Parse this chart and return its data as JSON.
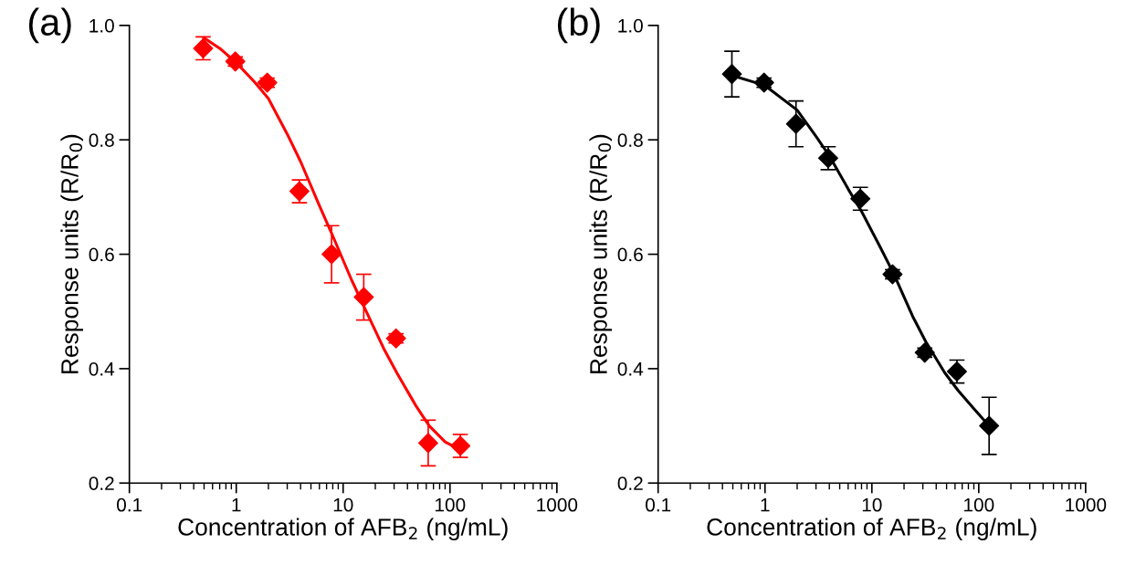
{
  "chart_data": [
    {
      "type": "scatter",
      "annotations": [
        "(a)"
      ],
      "xlabel": "Concentration of AFB$_{2}$ (ng/mL)",
      "ylabel": "Response units (R/R$_{0}$)",
      "log": "x",
      "xlim": [
        0.1,
        1000
      ],
      "xticks": [
        0.1,
        1,
        10,
        100,
        1000
      ],
      "ylim": [
        0.2,
        1.0
      ],
      "yticks": [
        0.2,
        0.4,
        0.6,
        0.8,
        {
          "value": 1.0,
          "label": "1.0"
        }
      ],
      "grid": false,
      "legend": false,
      "x": [
        0.49,
        0.98,
        1.95,
        3.9,
        7.8,
        15.6,
        31.25,
        62.5,
        125
      ],
      "series": [
        {
          "color": "#ff0000",
          "marker": "diamond",
          "values": [
            0.96,
            0.937,
            0.9,
            0.71,
            0.6,
            0.525,
            0.453,
            0.27,
            0.265
          ],
          "errors": [
            0.02,
            0.008,
            0.008,
            0.02,
            0.05,
            0.04,
            0.008,
            0.04,
            0.02
          ]
        },
        {
          "type": "line",
          "color": "#ff0000",
          "x": [
            0.5,
            0.7,
            1,
            1.5,
            2,
            3,
            4,
            6,
            8,
            12,
            16,
            24,
            32,
            48,
            64,
            90,
            125
          ],
          "values": [
            0.978,
            0.96,
            0.935,
            0.9,
            0.872,
            0.81,
            0.762,
            0.685,
            0.632,
            0.555,
            0.505,
            0.435,
            0.392,
            0.335,
            0.3,
            0.272,
            0.258
          ]
        }
      ]
    },
    {
      "type": "scatter",
      "annotations": [
        "(b)"
      ],
      "xlabel": "Concentration of AFB$_{2}$ (ng/mL)",
      "ylabel": "Response units (R/R$_{0}$)",
      "log": "x",
      "xlim": [
        0.1,
        1000
      ],
      "xticks": [
        0.1,
        1,
        10,
        100,
        1000
      ],
      "ylim": [
        0.2,
        1.0
      ],
      "yticks": [
        0.2,
        0.4,
        0.6,
        0.8,
        {
          "value": 1.0,
          "label": "1.0"
        }
      ],
      "grid": false,
      "legend": false,
      "x": [
        0.49,
        0.98,
        1.95,
        3.9,
        7.8,
        15.6,
        31.25,
        62.5,
        125
      ],
      "series": [
        {
          "color": "#000000",
          "marker": "diamond",
          "values": [
            0.915,
            0.9,
            0.828,
            0.768,
            0.697,
            0.565,
            0.428,
            0.395,
            0.3
          ],
          "errors": [
            0.04,
            0.008,
            0.04,
            0.02,
            0.02,
            0.008,
            0.008,
            0.02,
            0.05
          ]
        },
        {
          "type": "line",
          "color": "#000000",
          "x": [
            0.5,
            1,
            2,
            3,
            4,
            6,
            8,
            12,
            16,
            24,
            32,
            48,
            64,
            90,
            125
          ],
          "values": [
            0.912,
            0.895,
            0.852,
            0.806,
            0.772,
            0.714,
            0.675,
            0.612,
            0.566,
            0.492,
            0.447,
            0.393,
            0.362,
            0.33,
            0.3
          ]
        }
      ]
    }
  ]
}
